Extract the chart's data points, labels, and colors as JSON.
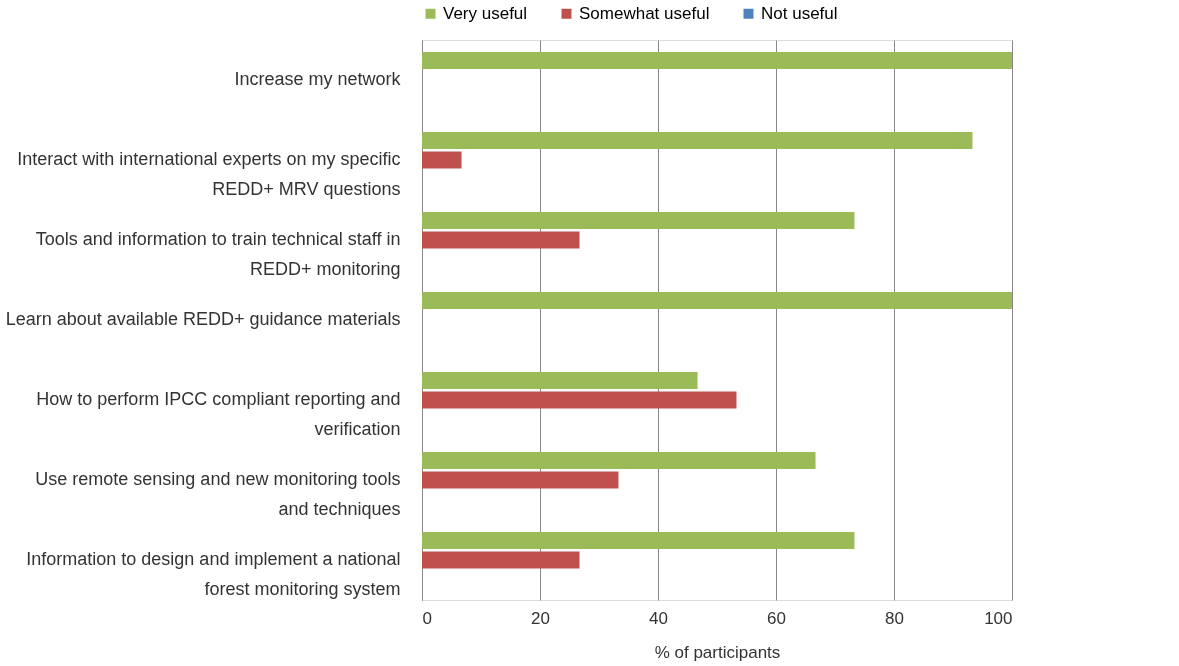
{
  "chart_data": {
    "type": "bar",
    "orientation": "horizontal",
    "xlabel": "% of participants",
    "categories": [
      "Increase my network",
      "Interact with international experts on my specific\nREDD+ MRV questions",
      "Tools and information to train technical staff in\nREDD+ monitoring",
      "Learn about available REDD+ guidance materials",
      "How to perform IPCC compliant reporting and\nverification",
      "Use remote sensing and new monitoring tools\nand techniques",
      "Information to design and implement a national\nforest monitoring system"
    ],
    "series": [
      {
        "name": "Very useful",
        "color": "#9bbb59",
        "values": [
          100,
          93.3,
          73.3,
          100,
          46.7,
          66.7,
          73.3
        ]
      },
      {
        "name": "Somewhat useful",
        "color": "#c0504d",
        "values": [
          0,
          6.7,
          26.7,
          0,
          53.3,
          33.3,
          26.7
        ]
      },
      {
        "name": "Not useful",
        "color": "#4f81bd",
        "values": [
          0,
          0,
          0,
          0,
          0,
          0,
          0
        ]
      }
    ],
    "xlim": [
      0,
      100
    ],
    "xticks": [
      0,
      20,
      40,
      60,
      80,
      100
    ],
    "grid": "x",
    "legend": "top"
  }
}
